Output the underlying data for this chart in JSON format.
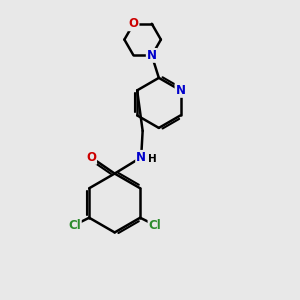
{
  "background_color": "#e8e8e8",
  "bond_color": "#000000",
  "bond_width": 1.8,
  "atom_colors": {
    "C": "#000000",
    "N": "#0000cc",
    "O": "#cc0000",
    "Cl": "#2d8c2d",
    "H": "#000000"
  },
  "font_size": 8.5,
  "fig_width": 3.0,
  "fig_height": 3.0,
  "dpi": 100
}
